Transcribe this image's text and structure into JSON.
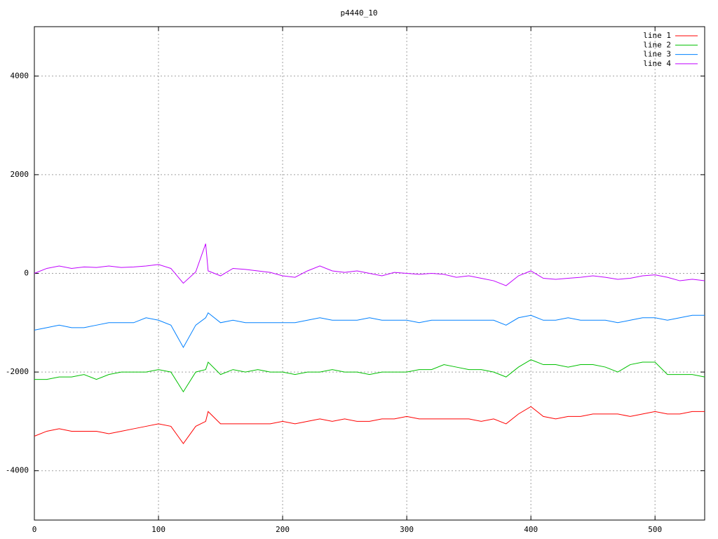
{
  "chart_data": {
    "type": "line",
    "title": "p4440_10",
    "x": [
      0,
      10,
      20,
      30,
      40,
      50,
      60,
      70,
      80,
      90,
      100,
      110,
      120,
      130,
      138,
      140,
      150,
      160,
      170,
      180,
      190,
      200,
      210,
      220,
      230,
      240,
      250,
      260,
      270,
      280,
      290,
      300,
      310,
      320,
      330,
      340,
      350,
      360,
      370,
      380,
      390,
      400,
      410,
      420,
      430,
      440,
      450,
      460,
      470,
      480,
      490,
      500,
      510,
      520,
      530,
      540
    ],
    "series": [
      {
        "name": "line 1",
        "color": "#ff0000",
        "values": [
          -3300,
          -3200,
          -3150,
          -3200,
          -3200,
          -3200,
          -3250,
          -3200,
          -3150,
          -3100,
          -3050,
          -3100,
          -3450,
          -3100,
          -3000,
          -2800,
          -3050,
          -3050,
          -3050,
          -3050,
          -3050,
          -3000,
          -3050,
          -3000,
          -2950,
          -3000,
          -2950,
          -3000,
          -3000,
          -2950,
          -2950,
          -2900,
          -2950,
          -2950,
          -2950,
          -2950,
          -2950,
          -3000,
          -2950,
          -3050,
          -2850,
          -2700,
          -2900,
          -2950,
          -2900,
          -2900,
          -2850,
          -2850,
          -2850,
          -2900,
          -2850,
          -2800,
          -2850,
          -2850,
          -2800,
          -2800
        ]
      },
      {
        "name": "line 2",
        "color": "#00c000",
        "values": [
          -2150,
          -2150,
          -2100,
          -2100,
          -2050,
          -2150,
          -2050,
          -2000,
          -2000,
          -2000,
          -1950,
          -2000,
          -2400,
          -2000,
          -1950,
          -1800,
          -2050,
          -1950,
          -2000,
          -1950,
          -2000,
          -2000,
          -2050,
          -2000,
          -2000,
          -1950,
          -2000,
          -2000,
          -2050,
          -2000,
          -2000,
          -2000,
          -1950,
          -1950,
          -1850,
          -1900,
          -1950,
          -1950,
          -2000,
          -2100,
          -1900,
          -1750,
          -1850,
          -1850,
          -1900,
          -1850,
          -1850,
          -1900,
          -2000,
          -1850,
          -1800,
          -1800,
          -2050,
          -2050,
          -2050,
          -2100
        ]
      },
      {
        "name": "line 3",
        "color": "#0080ff",
        "values": [
          -1150,
          -1100,
          -1050,
          -1100,
          -1100,
          -1050,
          -1000,
          -1000,
          -1000,
          -900,
          -950,
          -1050,
          -1500,
          -1050,
          -900,
          -800,
          -1000,
          -950,
          -1000,
          -1000,
          -1000,
          -1000,
          -1000,
          -950,
          -900,
          -950,
          -950,
          -950,
          -900,
          -950,
          -950,
          -950,
          -1000,
          -950,
          -950,
          -950,
          -950,
          -950,
          -950,
          -1050,
          -900,
          -850,
          -950,
          -950,
          -900,
          -950,
          -950,
          -950,
          -1000,
          -950,
          -900,
          -900,
          -950,
          -900,
          -850,
          -850
        ]
      },
      {
        "name": "line 4",
        "color": "#c000ff",
        "values": [
          0,
          100,
          150,
          100,
          130,
          120,
          150,
          120,
          130,
          150,
          180,
          100,
          -200,
          30,
          600,
          50,
          -50,
          100,
          80,
          50,
          20,
          -50,
          -80,
          50,
          150,
          50,
          20,
          50,
          0,
          -50,
          20,
          0,
          -20,
          0,
          -20,
          -80,
          -50,
          -100,
          -150,
          -250,
          -50,
          50,
          -100,
          -120,
          -100,
          -80,
          -50,
          -80,
          -120,
          -100,
          -50,
          -30,
          -80,
          -150,
          -120,
          -150
        ]
      }
    ],
    "xlim": [
      0,
      540
    ],
    "ylim": [
      -5000,
      5000
    ],
    "xticks": [
      0,
      100,
      200,
      300,
      400,
      500
    ],
    "yticks": [
      -4000,
      -2000,
      0,
      2000,
      4000
    ],
    "grid": true,
    "legend": "top-right"
  }
}
